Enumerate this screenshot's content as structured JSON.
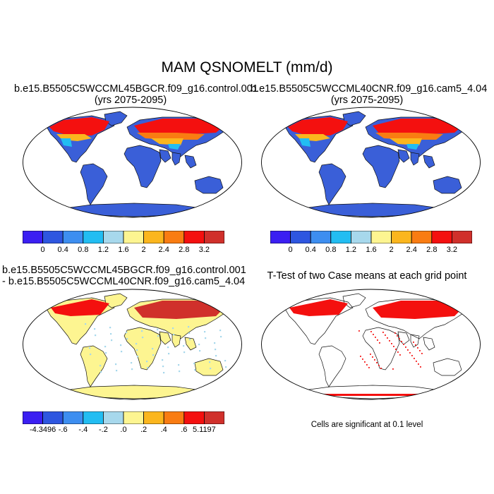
{
  "figure": {
    "title": "MAM QSNOMELT (mm/d)"
  },
  "panels": {
    "top_left": {
      "title_line1": "b.e15.B5505C5WCCML45BGCR.f09_g16.control.001",
      "title_line2": "(yrs 2075-2095)"
    },
    "top_right": {
      "title_line1": "b.e15.B5505C5WCCML40CNR.f09_g16.cam5_4.04",
      "title_line2": "(yrs 2075-2095)"
    },
    "bottom_left": {
      "title_line1": "b.e15.B5505C5WCCML45BGCR.f09_g16.control.001",
      "title_line2": "- b.e15.B5505C5WCCML40CNR.f09_g16.cam5_4.04"
    },
    "bottom_right": {
      "title_line1": "T-Test of two Case means at each grid point",
      "note": "Cells are significant at 0.1 level"
    }
  },
  "colorbars": {
    "case": {
      "colors": [
        "#3b1ff2",
        "#2e56e0",
        "#3d8ef0",
        "#22bdf2",
        "#a7d8ec",
        "#fdf591",
        "#fbb61e",
        "#f97c12",
        "#f4100f",
        "#d0302b"
      ],
      "labels": [
        "0",
        "0.4",
        "0.8",
        "1.2",
        "1.6",
        "2",
        "2.4",
        "2.8",
        "3.2"
      ]
    },
    "diff": {
      "colors": [
        "#3b1ff2",
        "#2e56e0",
        "#3d8ef0",
        "#22bdf2",
        "#a7d8ec",
        "#fdf591",
        "#fbb61e",
        "#f97c12",
        "#f4100f",
        "#d0302b"
      ],
      "labels": [
        "-4.3496",
        "-.6",
        "-.4",
        "-.2",
        ".0",
        ".2",
        ".4",
        ".6",
        "5.1197"
      ]
    }
  },
  "map_colors": {
    "ocean": "#ffffff",
    "land_case": "#3a5fd8",
    "land_diff": "#fdf591",
    "diff_light_blue": "#a7d8ec",
    "snow_red": "#f4100f",
    "snow_darkred": "#d0302b",
    "snow_orange": "#f97c12",
    "snow_yellow": "#fbb61e",
    "snow_cyan": "#22bdf2",
    "sig_red": "#f4100f"
  }
}
